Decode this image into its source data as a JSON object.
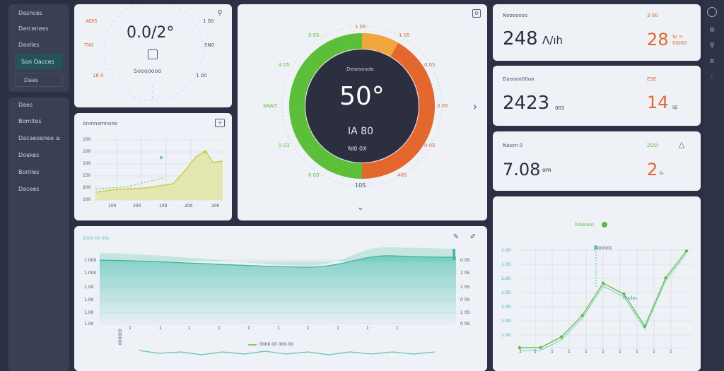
{
  "sidebar": {
    "items": [
      {
        "label": "Dasnces"
      },
      {
        "label": "Darcenees"
      },
      {
        "label": "Daolles"
      },
      {
        "label": "Son Oacces"
      },
      {
        "label": "Daas"
      }
    ],
    "items2": [
      {
        "label": "Daes"
      },
      {
        "label": "Bomites"
      },
      {
        "label": "Dacaeoenee ≥"
      },
      {
        "label": "Doakes"
      },
      {
        "label": "Borilles"
      },
      {
        "label": "Dacees"
      }
    ]
  },
  "clock_card": {
    "value": "0.0/2°",
    "sub": "Sooooooo",
    "ticks": [
      "ADIS",
      "Th0",
      "16 0",
      "1 00",
      "5N0",
      "1 00"
    ]
  },
  "small_chart": {
    "title": "Anmnemnone",
    "ylabels": [
      "100",
      "100",
      "100",
      "150",
      "200",
      "100"
    ],
    "xlabels": [
      "100",
      "200",
      "100",
      "200",
      "100"
    ]
  },
  "gauge": {
    "value": "50°",
    "label_top": "Desesoodo",
    "label_mid": "IA 80",
    "label_bot": "NI0 0X",
    "scale": [
      "1 0S",
      "1 05",
      "0 05",
      "3 05",
      "0 05",
      "SNAO",
      "400",
      "4 05",
      "0 0S",
      "0 03",
      "0 05"
    ],
    "bottom_value": "10S"
  },
  "stats": [
    {
      "title": "Nooooooo",
      "value": "248",
      "unit": "Λ/ıh",
      "right_label": "3 00",
      "right_value": "28",
      "right_unit": "9/ =\n00/00",
      "right_color": "#e4672e"
    },
    {
      "title": "Daoooo00oo",
      "value": "2423",
      "unit": "001",
      "right_label": "ESE",
      "right_value": "14",
      "right_unit": "SE",
      "right_color": "#e4672e"
    },
    {
      "title": "Nassn 0",
      "value": "7.08",
      "unit": "om",
      "right_label": "ZOO",
      "right_value": "2",
      "right_unit": "0-",
      "right_color": "#e4672e"
    }
  ],
  "area_chart": {
    "title": "2000 00 00s",
    "ylabels": [
      "1.000",
      "1.000",
      "1.00",
      "1.00",
      "1.00",
      "1.00"
    ],
    "yright": [
      "0.0S",
      "1 0S",
      "1 0S",
      "0 0S",
      "1 0S",
      "0 0S"
    ],
    "xlabels": [
      "1",
      "1",
      "1",
      "1",
      "1",
      "1",
      "1",
      "1",
      "1",
      "1"
    ],
    "bottom_label": "0000 00 000 00",
    "side_label": "000000"
  },
  "line_chart": {
    "title": "Dooooo",
    "marker_label": "1000001",
    "annot": "Rodos",
    "ylabels": [
      "1.00",
      "1.00",
      "1.00",
      "1.00",
      "1.00",
      "1.00",
      "1.00"
    ],
    "xlabels": [
      "1",
      "1",
      "1",
      "1",
      "1",
      "1",
      "1",
      "1",
      "1",
      "1"
    ],
    "values": [
      0,
      0,
      2,
      6,
      12,
      10,
      4,
      13,
      18
    ]
  },
  "colors": {
    "accent_green": "#5bbf3a",
    "accent_orange": "#e4672e",
    "teal": "#5ec6b6",
    "bg": "#2c3044",
    "card": "#eef1f6"
  }
}
